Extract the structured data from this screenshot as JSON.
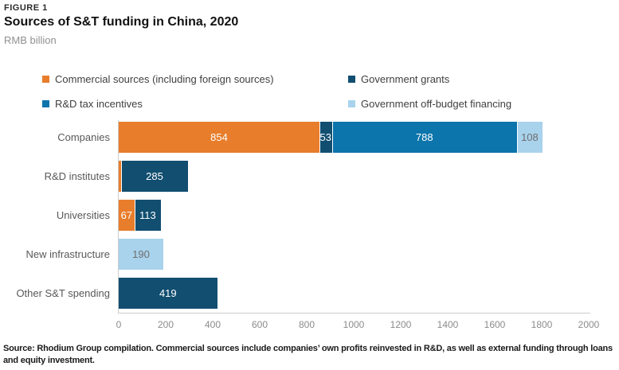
{
  "figure": {
    "label": "FIGURE 1",
    "title": "Sources of S&T funding in China, 2020",
    "unit": "RMB billion",
    "source_note": "Source: Rhodium Group compilation. Commercial sources include companies’ own profits reinvested in R&D, as well as external funding through loans and equity investment."
  },
  "chart_data": {
    "type": "bar",
    "orientation": "horizontal",
    "stacked": true,
    "grid": false,
    "legend_position": "top",
    "xlim": [
      0,
      2000
    ],
    "x_ticks": [
      0,
      200,
      400,
      600,
      800,
      1000,
      1200,
      1400,
      1600,
      1800,
      2000
    ],
    "legend": [
      {
        "label": "Commercial sources (including foreign sources)",
        "color": "#E87D2B",
        "value_text_color": "#FFFFFF"
      },
      {
        "label": "Government grants",
        "color": "#114E70",
        "value_text_color": "#FFFFFF"
      },
      {
        "label": "R&D tax incentives",
        "color": "#0B75AC",
        "value_text_color": "#FFFFFF"
      },
      {
        "label": "Government off-budget financing",
        "color": "#A9D2EC",
        "value_text_color": "#6E6E6E"
      }
    ],
    "categories": [
      "Companies",
      "R&D institutes",
      "Universities",
      "New infrastructure",
      "Other S&T spending"
    ],
    "rows": [
      {
        "category": "Companies",
        "segments": [
          {
            "series": "Commercial sources (including foreign sources)",
            "value": 854,
            "label": "854"
          },
          {
            "series": "Government grants",
            "value": 53,
            "label": "53"
          },
          {
            "series": "R&D tax incentives",
            "value": 788,
            "label": "788"
          },
          {
            "series": "Government off-budget financing",
            "value": 108,
            "label": "108"
          }
        ]
      },
      {
        "category": "R&D institutes",
        "segments": [
          {
            "series": "Commercial sources (including foreign sources)",
            "value": 10,
            "label": ""
          },
          {
            "series": "Government grants",
            "value": 285,
            "label": "285"
          }
        ]
      },
      {
        "category": "Universities",
        "segments": [
          {
            "series": "Commercial sources (including foreign sources)",
            "value": 67,
            "label": "67"
          },
          {
            "series": "Government grants",
            "value": 113,
            "label": "113"
          }
        ]
      },
      {
        "category": "New infrastructure",
        "segments": [
          {
            "series": "Government off-budget financing",
            "value": 190,
            "label": "190"
          }
        ]
      },
      {
        "category": "Other S&T spending",
        "segments": [
          {
            "series": "Government grants",
            "value": 419,
            "label": "419"
          }
        ]
      }
    ]
  }
}
